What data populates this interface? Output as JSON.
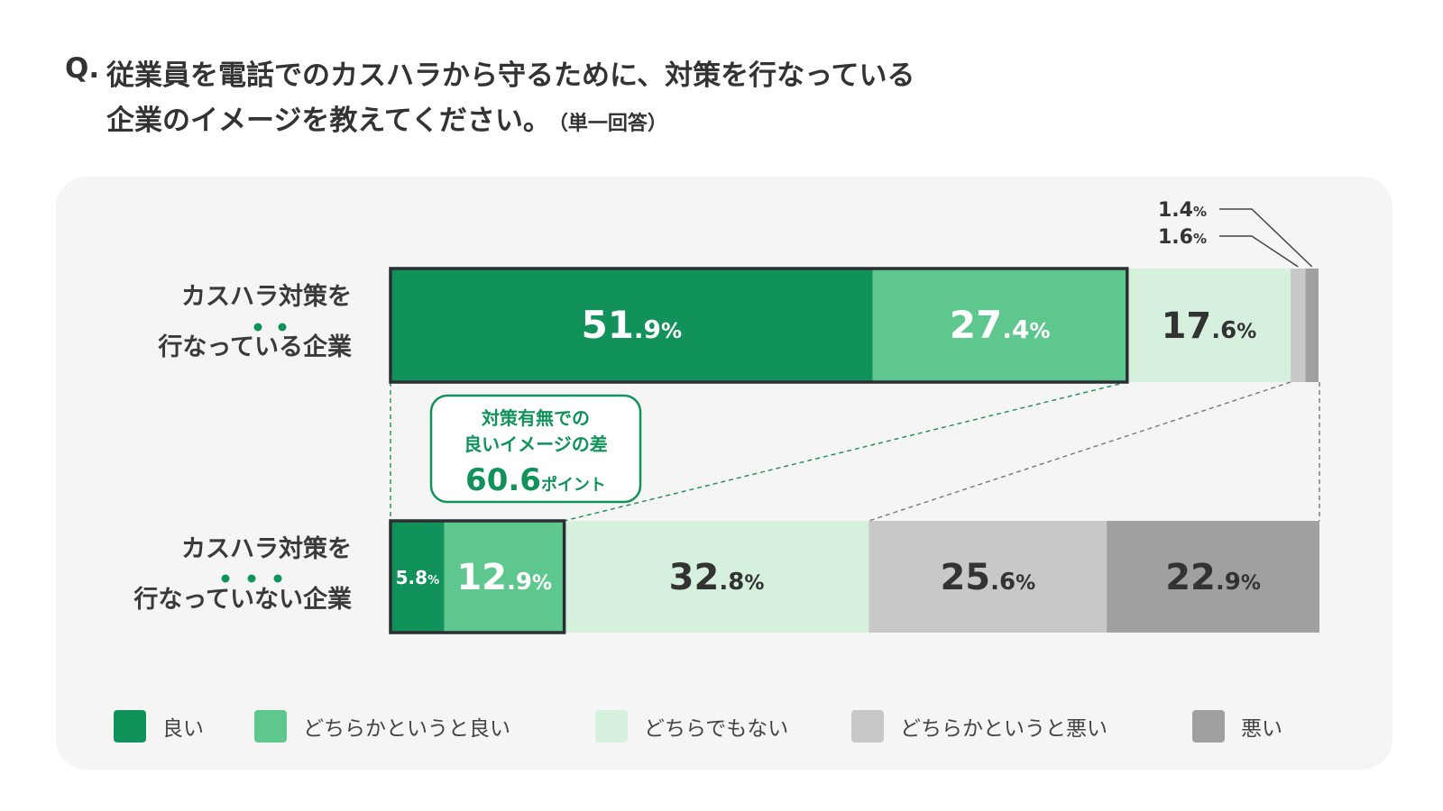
{
  "question": {
    "prefix": "Q.",
    "line1": "従業員を電話でのカスハラから守るために、対策を行なっている",
    "line2": "企業のイメージを教えてください。",
    "note": "（単一回答）"
  },
  "callout": {
    "line1": "対策有無での",
    "line2": "良いイメージの差",
    "value": "60.6",
    "unit": "ポイント"
  },
  "colors": {
    "good": "#11925a",
    "somewhat_good": "#5ec78e",
    "neutral": "#d6f0de",
    "somewhat_bad": "#c8c8c8",
    "bad": "#a0a0a0",
    "highlight_border": "#2b2f33",
    "callout": "#11925a"
  },
  "chart_data": {
    "type": "bar",
    "orientation": "horizontal",
    "stacked": true,
    "unit": "%",
    "categories": [
      "カスハラ対策を行なっている企業",
      "カスハラ対策を行なっていない企業"
    ],
    "category_lines": [
      [
        "カスハラ対策を",
        "行なっている企業"
      ],
      [
        "カスハラ対策を",
        "行なっていない企業"
      ]
    ],
    "series": [
      {
        "name": "良い",
        "values": [
          51.9,
          5.8
        ]
      },
      {
        "name": "どちらかというと良い",
        "values": [
          27.4,
          12.9
        ]
      },
      {
        "name": "どちらでもない",
        "values": [
          17.6,
          32.8
        ]
      },
      {
        "name": "どちらかというと悪い",
        "values": [
          1.6,
          25.6
        ]
      },
      {
        "name": "悪い",
        "values": [
          1.4,
          22.9
        ]
      }
    ],
    "xlim": [
      0,
      100
    ],
    "legend_position": "bottom",
    "grid": false
  }
}
